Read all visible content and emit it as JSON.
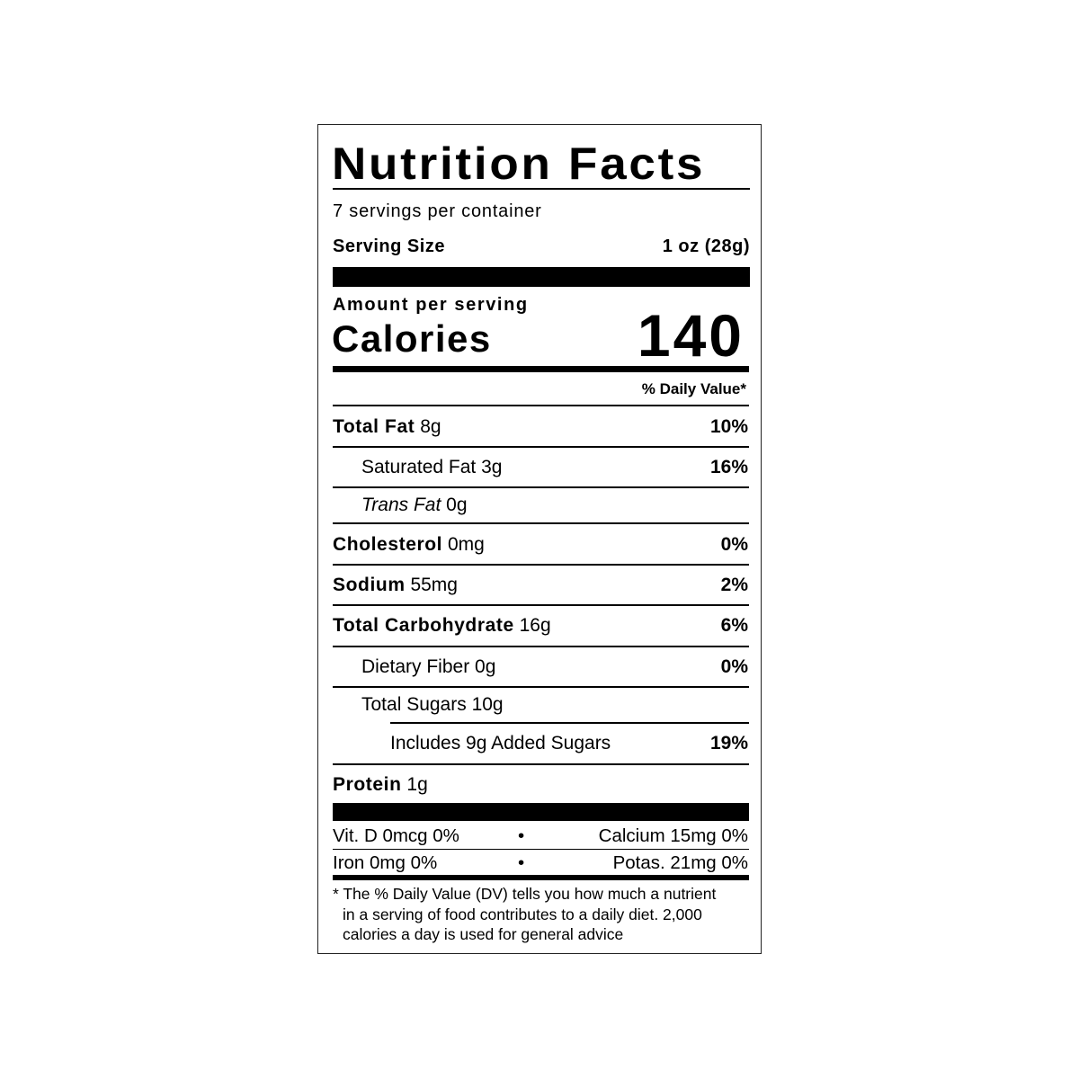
{
  "title": "Nutrition Facts",
  "servings_per_container": "7 servings per container",
  "serving_size": {
    "label": "Serving Size",
    "value": "1 oz (28g)"
  },
  "amount_per_serving": "Amount per serving",
  "calories": {
    "label": "Calories",
    "value": "140"
  },
  "daily_value_header": "% Daily Value*",
  "nutrients": [
    {
      "name": "Total Fat",
      "amount": "8g",
      "dv": "10%",
      "bold": true,
      "indent": 0
    },
    {
      "name": "Saturated Fat",
      "amount": "3g",
      "dv": "16%",
      "bold": false,
      "indent": 1
    },
    {
      "name": "Trans Fat",
      "amount": "0g",
      "dv": "",
      "bold": false,
      "indent": 1,
      "italic": true
    },
    {
      "name": "Cholesterol",
      "amount": "0mg",
      "dv": "0%",
      "bold": true,
      "indent": 0
    },
    {
      "name": "Sodium",
      "amount": "55mg",
      "dv": "2%",
      "bold": true,
      "indent": 0
    },
    {
      "name": "Total Carbohydrate",
      "amount": "16g",
      "dv": "6%",
      "bold": true,
      "indent": 0
    },
    {
      "name": "Dietary Fiber",
      "amount": "0g",
      "dv": "0%",
      "bold": false,
      "indent": 1
    },
    {
      "name": "Total Sugars",
      "amount": "10g",
      "dv": "",
      "bold": false,
      "indent": 1
    },
    {
      "name": "Includes 9g Added Sugars",
      "amount": "",
      "dv": "19%",
      "bold": false,
      "indent": 2
    },
    {
      "name": "Protein",
      "amount": "1g",
      "dv": "",
      "bold": true,
      "indent": 0
    }
  ],
  "vitamins": [
    {
      "left": "Vit. D 0mcg 0%",
      "right": "Calcium 15mg 0%"
    },
    {
      "left": "Iron 0mg 0%",
      "right": "Potas. 21mg 0%"
    }
  ],
  "separator": "•",
  "footnote": [
    "* The % Daily Value (DV) tells you how much a nutrient",
    "in a serving of food contributes to a daily diet. 2,000",
    "calories a day is used for general advice"
  ]
}
